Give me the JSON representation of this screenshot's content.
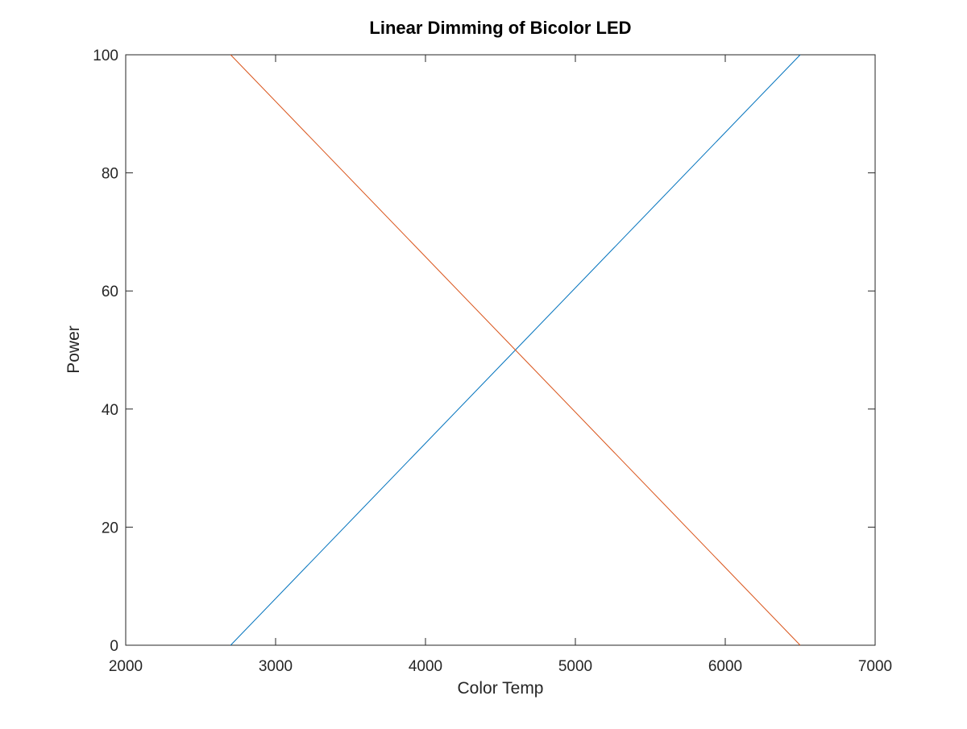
{
  "chart_data": {
    "type": "line",
    "title": "Linear Dimming of Bicolor LED",
    "xlabel": "Color Temp",
    "ylabel": "Power",
    "xlim": [
      2000,
      7000
    ],
    "ylim": [
      0,
      100
    ],
    "xticks": [
      2000,
      3000,
      4000,
      5000,
      6000,
      7000
    ],
    "yticks": [
      0,
      20,
      40,
      60,
      80,
      100
    ],
    "grid": false,
    "series": [
      {
        "color": "#0072bd",
        "x": [
          2700,
          6500
        ],
        "y": [
          0,
          100
        ]
      },
      {
        "color": "#d95319",
        "x": [
          2700,
          6500
        ],
        "y": [
          100,
          0
        ]
      }
    ]
  }
}
